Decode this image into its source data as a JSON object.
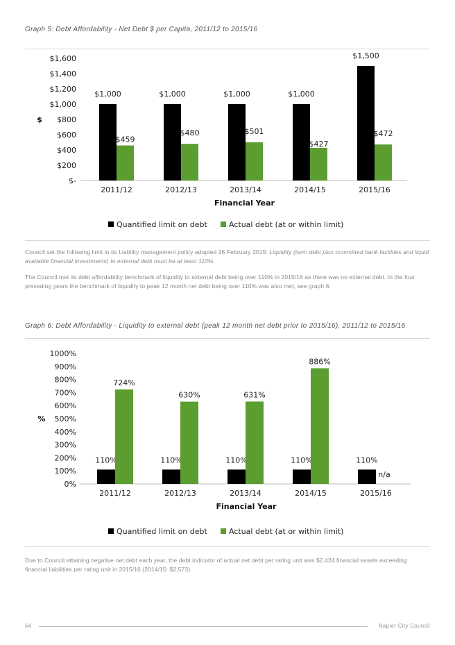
{
  "graph5": {
    "caption": "Graph 5: Debt Affordability - Net Debt $ per Capita, 2011/12 to 2015/16"
  },
  "graph6": {
    "caption": "Graph 6: Debt Affordability - Liquidity to external debt (peak 12 month net debt prior to 2015/16), 2011/12 to 2015/16"
  },
  "para1": {
    "text": "Council set the following limit in its Liability management policy adopted 26 February 2015: ",
    "italic": "Liquidity (term debt plus committed bank facilities and liquid available financial investments) to external debt must be at least 110%."
  },
  "para2": {
    "text": "The Council met its debt affordability benchmark of liquidity to external debt being over 110% in 2015/16 as there was no external debt. In the four preceding years the benchmark of liquidity to peak 12 month net debt being over 110% was also met, see graph 6."
  },
  "para3": {
    "text": "Due to Council attaining negative net debt each year, the debt indicator of actual net debt per rating unit was $2,424 financial assets exceeding financial liabilities per rating unit in 2015/16 (2014/15: $2,573)."
  },
  "footer": {
    "page_number": "64",
    "organization": "Napier City Council"
  },
  "chart_data": [
    {
      "type": "bar",
      "categories": [
        "2011/12",
        "2012/13",
        "2013/14",
        "2014/15",
        "2015/16"
      ],
      "series": [
        {
          "name": "Quantified limit on debt",
          "values": [
            1000,
            1000,
            1000,
            1000,
            1500
          ],
          "labels": [
            "$1,000",
            "$1,000",
            "$1,000",
            "$1,000",
            "$1,500"
          ],
          "color": "#000000"
        },
        {
          "name": "Actual debt (at or within limit)",
          "values": [
            459,
            480,
            501,
            427,
            472
          ],
          "labels": [
            "$459",
            "$480",
            "$501",
            "$427",
            "$472"
          ],
          "color": "#5b9e2f"
        }
      ],
      "ylim": [
        0,
        1600
      ],
      "yticks": [
        0,
        200,
        400,
        600,
        800,
        1000,
        1200,
        1400,
        1600
      ],
      "ytick_labels": [
        "$-",
        "$200",
        "$400",
        "$600",
        "$800",
        "$1,000",
        "$1,200",
        "$1,400",
        "$1,600"
      ],
      "ylabel": "$",
      "xlabel": "Financial Year",
      "legend": "bottom"
    },
    {
      "type": "bar",
      "categories": [
        "2011/12",
        "2012/13",
        "2013/14",
        "2014/15",
        "2015/16"
      ],
      "series": [
        {
          "name": "Quantified limit on debt",
          "values": [
            110,
            110,
            110,
            110,
            110
          ],
          "labels": [
            "110%",
            "110%",
            "110%",
            "110%",
            "110%"
          ],
          "color": "#000000"
        },
        {
          "name": "Actual debt (at or within limit)",
          "values": [
            724,
            630,
            631,
            886,
            null
          ],
          "labels": [
            "724%",
            "630%",
            "631%",
            "886%",
            "n/a"
          ],
          "color": "#5b9e2f"
        }
      ],
      "ylim": [
        0,
        1000
      ],
      "yticks": [
        0,
        100,
        200,
        300,
        400,
        500,
        600,
        700,
        800,
        900,
        1000
      ],
      "ytick_labels": [
        "0%",
        "100%",
        "200%",
        "300%",
        "400%",
        "500%",
        "600%",
        "700%",
        "800%",
        "900%",
        "1000%"
      ],
      "ylabel": "%",
      "xlabel": "Financial Year",
      "legend": "bottom"
    }
  ]
}
